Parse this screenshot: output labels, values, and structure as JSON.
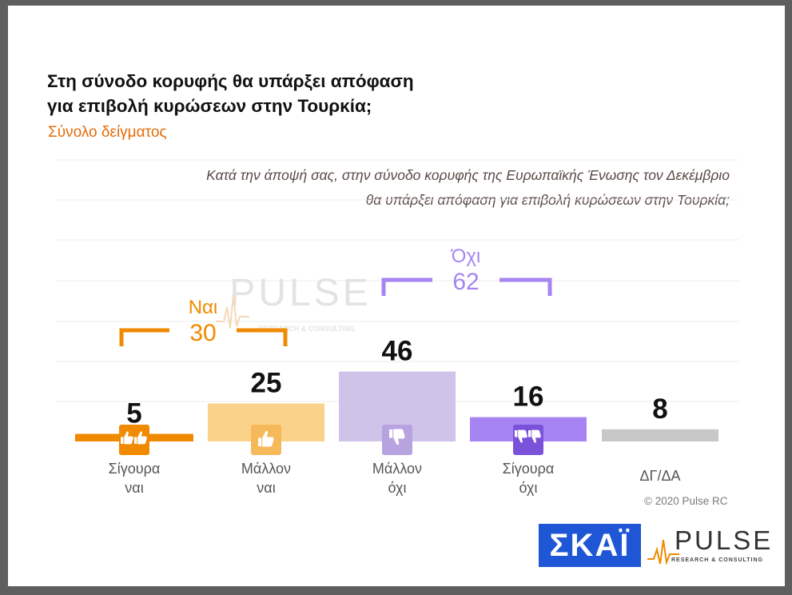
{
  "title_lines": [
    "Στη σύνοδο κορυφής θα υπάρξει απόφαση",
    "για επιβολή κυρώσεων στην Τουρκία;"
  ],
  "subtitle": "Σύνολο δείγματος",
  "question_lines": [
    "Κατά την άποψή σας, στην σύνοδο κορυφής της Ευρωπαϊκής Ένωσης τον Δεκέμβριο",
    "θα υπάρξει απόφαση για επιβολή κυρώσεων στην Τουρκία;"
  ],
  "watermark": {
    "word": "PULSE",
    "sub": "RESEARCH & CONSULTING"
  },
  "copyright": "© 2020 Pulse RC",
  "logos": {
    "skai": "ΣΚΑΪ",
    "pulse": "PULSE",
    "pulse_sub": "RESEARCH & CONSULTING"
  },
  "chart_data": {
    "type": "bar",
    "categories": [
      [
        "Σίγουρα",
        "ναι"
      ],
      [
        "Μάλλον",
        "ναι"
      ],
      [
        "Μάλλον",
        "όχι"
      ],
      [
        "Σίγουρα",
        "όχι"
      ],
      [
        "ΔΓ/ΔΑ"
      ]
    ],
    "values": [
      5,
      25,
      46,
      16,
      8
    ],
    "colors": [
      "#f08a00",
      "#fbd28a",
      "#cfc3ea",
      "#a685f2",
      "#c8c8c8"
    ],
    "icons": [
      "double-thumbs-up-icon",
      "thumbs-up-icon",
      "thumbs-down-icon",
      "double-thumbs-down-icon",
      null
    ],
    "groups": [
      {
        "label": "Ναι",
        "total": "30",
        "color": "#f08a00"
      },
      {
        "label": "Όχι",
        "total": "62",
        "color": "#a685f2"
      }
    ],
    "ylim": [
      0,
      60
    ],
    "grid": true
  }
}
